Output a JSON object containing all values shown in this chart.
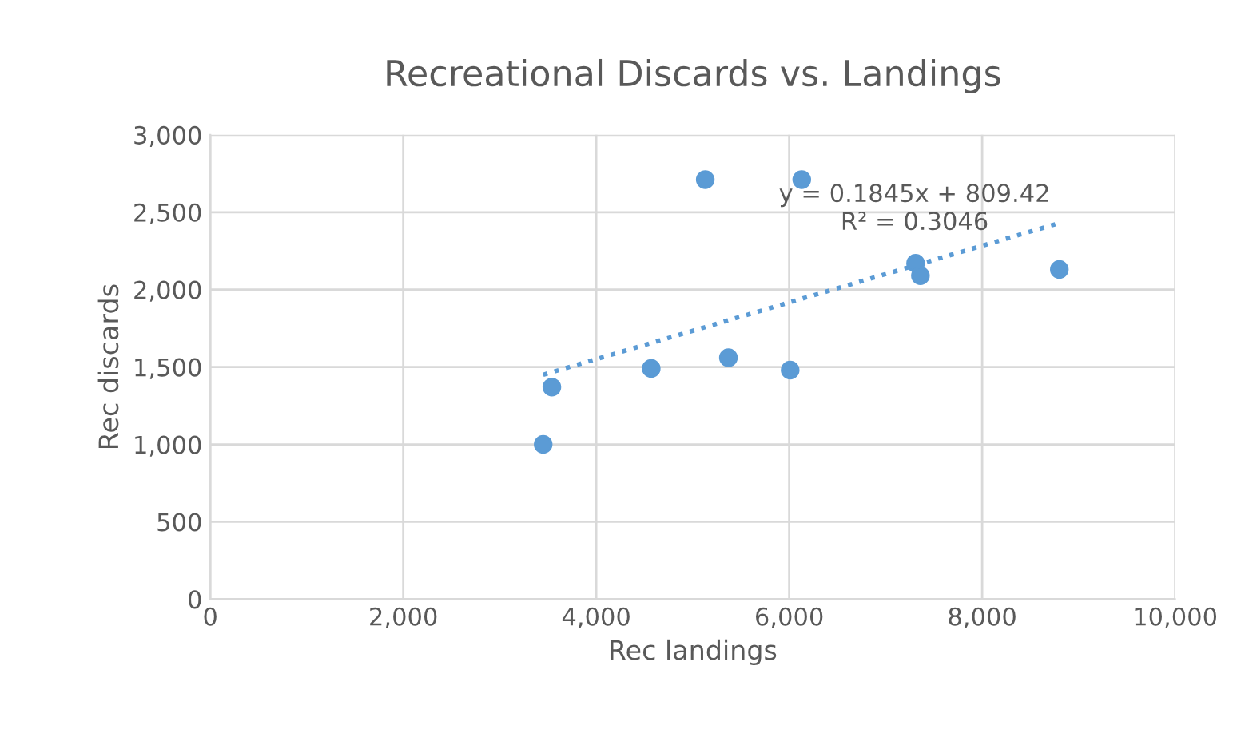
{
  "chart_data": {
    "type": "scatter",
    "title": "Recreational Discards vs. Landings",
    "xlabel": "Rec landings",
    "ylabel": "Rec discards",
    "series": [
      {
        "color": "#5b9bd5",
        "x": [
          3450,
          3540,
          4570,
          5130,
          5370,
          6010,
          6130,
          7310,
          7360,
          8800
        ],
        "values": [
          1000,
          1370,
          1490,
          2710,
          1560,
          1480,
          2710,
          2170,
          2090,
          2130
        ]
      },
      {
        "type": "line",
        "color": "#5b9bd5",
        "line_style": "dotted",
        "marker": "none",
        "x": [
          3450,
          8800
        ],
        "values": [
          1450,
          2430
        ]
      }
    ],
    "annotations": [
      "y = 0.1845x + 809.42",
      "R² = 0.3046"
    ],
    "marker": "circle",
    "grid": true,
    "legend": false,
    "xlim": [
      0,
      10000
    ],
    "ylim": [
      0,
      3000
    ],
    "xticks": [
      {
        "value": 0,
        "label": "0"
      },
      {
        "value": 2000,
        "label": "2,000"
      },
      {
        "value": 4000,
        "label": "4,000"
      },
      {
        "value": 6000,
        "label": "6,000"
      },
      {
        "value": 8000,
        "label": "8,000"
      },
      {
        "value": 10000,
        "label": "10,000"
      }
    ],
    "yticks": [
      {
        "value": 0,
        "label": "0"
      },
      {
        "value": 500,
        "label": "500"
      },
      {
        "value": 1000,
        "label": "1,000"
      },
      {
        "value": 1500,
        "label": "1,500"
      },
      {
        "value": 2000,
        "label": "2,000"
      },
      {
        "value": 2500,
        "label": "2,500"
      },
      {
        "value": 3000,
        "label": "3,000"
      }
    ]
  }
}
